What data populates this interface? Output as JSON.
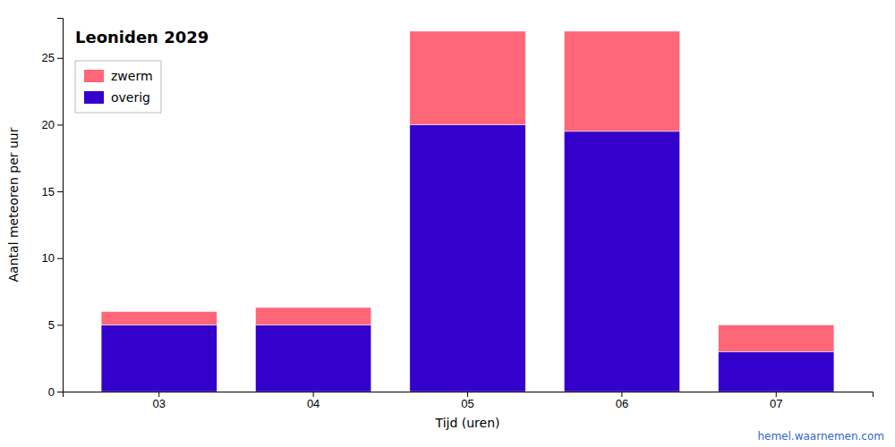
{
  "chart_data": {
    "type": "bar",
    "title": "Leoniden 2029",
    "xlabel": "Tijd (uren)",
    "ylabel": "Aantal meteoren per uur",
    "categories": [
      "03",
      "04",
      "05",
      "06",
      "07"
    ],
    "series": [
      {
        "name": "overig",
        "color": "#3300CC",
        "values": [
          5.0,
          5.0,
          20.0,
          19.5,
          3.0
        ]
      },
      {
        "name": "zwerm",
        "color": "#FF6677",
        "values": [
          1.0,
          1.3,
          7.0,
          7.5,
          2.0
        ]
      }
    ],
    "stacked": true,
    "ylim": [
      0,
      28
    ],
    "yticks": [
      0,
      5,
      10,
      15,
      20,
      25
    ],
    "grid": false,
    "legend": "upper left",
    "annotations": [
      {
        "text": "hemel.waarnemen.com",
        "color": "#3366CC"
      }
    ]
  }
}
